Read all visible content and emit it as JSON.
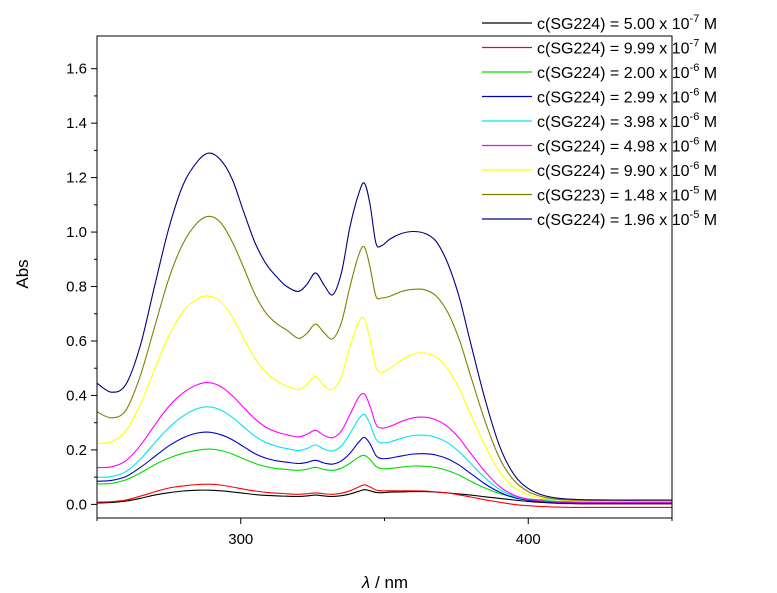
{
  "chart_data": {
    "type": "line",
    "xlabel_symbol": "λ",
    "xlabel_unit": " / nm",
    "ylabel": "Abs",
    "xlim": [
      250,
      450
    ],
    "ylim": [
      -0.05,
      1.72
    ],
    "x_ticks": [
      300,
      400
    ],
    "x_tick_labels": [
      "300",
      "400"
    ],
    "y_ticks": [
      0.0,
      0.2,
      0.4,
      0.6,
      0.8,
      1.0,
      1.2,
      1.4,
      1.6
    ],
    "y_tick_labels": [
      "0.0",
      "0.2",
      "0.4",
      "0.6",
      "0.8",
      "1.0",
      "1.2",
      "1.4",
      "1.6"
    ],
    "grid": false,
    "legend_position": "top-right",
    "x": [
      250,
      255,
      260,
      265,
      270,
      275,
      280,
      285,
      289,
      293,
      297,
      301,
      305,
      309,
      313,
      316,
      320,
      323,
      326,
      329,
      332,
      335,
      338,
      341,
      343,
      345,
      347,
      349,
      352,
      356,
      360,
      364,
      368,
      372,
      376,
      380,
      385,
      390,
      395,
      400,
      405,
      410,
      415,
      420,
      430,
      440,
      450
    ],
    "series": [
      {
        "name": "c(SG224) = 5.00 x 10",
        "exp": "-7",
        "unit": " M",
        "color": "#000000",
        "values": [
          0.005,
          0.007,
          0.012,
          0.022,
          0.034,
          0.043,
          0.049,
          0.052,
          0.052,
          0.05,
          0.046,
          0.041,
          0.036,
          0.033,
          0.031,
          0.03,
          0.029,
          0.031,
          0.034,
          0.031,
          0.029,
          0.032,
          0.038,
          0.048,
          0.054,
          0.05,
          0.044,
          0.043,
          0.045,
          0.046,
          0.047,
          0.047,
          0.045,
          0.042,
          0.038,
          0.034,
          0.028,
          0.022,
          0.016,
          0.011,
          0.007,
          0.004,
          0.003,
          0.002,
          0.002,
          0.002,
          0.002
        ]
      },
      {
        "name": "c(SG224) = 9.99 x 10",
        "exp": "-7",
        "unit": " M",
        "color": "#ff0000",
        "values": [
          0.008,
          0.01,
          0.016,
          0.03,
          0.046,
          0.06,
          0.068,
          0.073,
          0.074,
          0.071,
          0.064,
          0.056,
          0.049,
          0.044,
          0.041,
          0.039,
          0.037,
          0.039,
          0.042,
          0.039,
          0.037,
          0.041,
          0.05,
          0.064,
          0.072,
          0.064,
          0.053,
          0.05,
          0.05,
          0.05,
          0.05,
          0.049,
          0.046,
          0.042,
          0.035,
          0.027,
          0.017,
          0.008,
          0.0,
          -0.005,
          -0.008,
          -0.01,
          -0.011,
          -0.011,
          -0.011,
          -0.011,
          -0.011
        ]
      },
      {
        "name": "c(SG224) = 2.00 x 10",
        "exp": "-6",
        "unit": " M",
        "color": "#00dd00",
        "values": [
          0.075,
          0.077,
          0.09,
          0.115,
          0.145,
          0.17,
          0.188,
          0.199,
          0.203,
          0.198,
          0.185,
          0.167,
          0.15,
          0.138,
          0.131,
          0.128,
          0.125,
          0.129,
          0.136,
          0.128,
          0.125,
          0.133,
          0.151,
          0.173,
          0.18,
          0.165,
          0.14,
          0.131,
          0.132,
          0.137,
          0.141,
          0.14,
          0.135,
          0.124,
          0.107,
          0.085,
          0.06,
          0.04,
          0.027,
          0.02,
          0.017,
          0.016,
          0.015,
          0.015,
          0.015,
          0.015,
          0.015
        ]
      },
      {
        "name": "c(SG224) = 2.99 x 10",
        "exp": "-6",
        "unit": " M",
        "color": "#0000cc",
        "values": [
          0.085,
          0.088,
          0.102,
          0.135,
          0.175,
          0.215,
          0.245,
          0.262,
          0.265,
          0.256,
          0.238,
          0.212,
          0.186,
          0.169,
          0.159,
          0.155,
          0.15,
          0.154,
          0.162,
          0.152,
          0.148,
          0.16,
          0.188,
          0.228,
          0.246,
          0.222,
          0.18,
          0.168,
          0.17,
          0.178,
          0.185,
          0.186,
          0.181,
          0.167,
          0.144,
          0.113,
          0.075,
          0.045,
          0.025,
          0.015,
          0.01,
          0.007,
          0.006,
          0.005,
          0.005,
          0.005,
          0.005
        ]
      },
      {
        "name": "c(SG224) = 3.98 x 10",
        "exp": "-6",
        "unit": " M",
        "color": "#00e5ee",
        "values": [
          0.1,
          0.102,
          0.12,
          0.165,
          0.225,
          0.282,
          0.325,
          0.352,
          0.358,
          0.347,
          0.32,
          0.285,
          0.25,
          0.226,
          0.212,
          0.205,
          0.198,
          0.205,
          0.218,
          0.203,
          0.196,
          0.215,
          0.26,
          0.313,
          0.33,
          0.295,
          0.24,
          0.226,
          0.23,
          0.243,
          0.253,
          0.254,
          0.246,
          0.226,
          0.193,
          0.15,
          0.097,
          0.055,
          0.03,
          0.018,
          0.013,
          0.011,
          0.01,
          0.01,
          0.01,
          0.01,
          0.01
        ]
      },
      {
        "name": "c(SG224) = 4.98 x 10",
        "exp": "-6",
        "unit": " M",
        "color": "#ff00ff",
        "values": [
          0.135,
          0.138,
          0.16,
          0.215,
          0.29,
          0.36,
          0.41,
          0.44,
          0.447,
          0.433,
          0.4,
          0.356,
          0.313,
          0.282,
          0.264,
          0.256,
          0.248,
          0.257,
          0.272,
          0.253,
          0.245,
          0.27,
          0.33,
          0.393,
          0.405,
          0.36,
          0.295,
          0.28,
          0.287,
          0.305,
          0.318,
          0.32,
          0.31,
          0.285,
          0.243,
          0.187,
          0.12,
          0.066,
          0.034,
          0.019,
          0.012,
          0.009,
          0.008,
          0.007,
          0.007,
          0.007,
          0.007
        ]
      },
      {
        "name": "c(SG224) = 9.90 x 10",
        "exp": "-6",
        "unit": " M",
        "color": "#ffff00",
        "values": [
          0.225,
          0.229,
          0.27,
          0.365,
          0.495,
          0.62,
          0.71,
          0.755,
          0.765,
          0.745,
          0.69,
          0.61,
          0.535,
          0.482,
          0.45,
          0.435,
          0.422,
          0.44,
          0.47,
          0.435,
          0.423,
          0.47,
          0.58,
          0.67,
          0.68,
          0.605,
          0.505,
          0.485,
          0.5,
          0.53,
          0.552,
          0.556,
          0.54,
          0.497,
          0.425,
          0.33,
          0.215,
          0.12,
          0.063,
          0.035,
          0.022,
          0.016,
          0.014,
          0.013,
          0.012,
          0.012,
          0.012
        ]
      },
      {
        "name": "c(SG223) = 1.48 x 10",
        "exp": "-5",
        "unit": " M",
        "color": "#808000",
        "values": [
          0.34,
          0.318,
          0.345,
          0.47,
          0.65,
          0.83,
          0.96,
          1.035,
          1.058,
          1.035,
          0.965,
          0.87,
          0.77,
          0.7,
          0.66,
          0.64,
          0.61,
          0.628,
          0.662,
          0.63,
          0.608,
          0.668,
          0.8,
          0.915,
          0.945,
          0.87,
          0.765,
          0.758,
          0.765,
          0.782,
          0.79,
          0.788,
          0.765,
          0.705,
          0.605,
          0.47,
          0.305,
          0.17,
          0.088,
          0.047,
          0.028,
          0.019,
          0.016,
          0.015,
          0.014,
          0.014,
          0.014
        ]
      },
      {
        "name": "c(SG224) = 1.96 x 10",
        "exp": "-5",
        "unit": " M",
        "color": "#000080",
        "values": [
          0.445,
          0.412,
          0.44,
          0.58,
          0.8,
          1.015,
          1.175,
          1.26,
          1.29,
          1.265,
          1.195,
          1.075,
          0.96,
          0.88,
          0.83,
          0.8,
          0.782,
          0.808,
          0.85,
          0.805,
          0.77,
          0.85,
          1.02,
          1.14,
          1.18,
          1.1,
          0.96,
          0.95,
          0.975,
          0.995,
          1.002,
          0.995,
          0.965,
          0.885,
          0.76,
          0.59,
          0.385,
          0.215,
          0.11,
          0.058,
          0.034,
          0.023,
          0.019,
          0.017,
          0.016,
          0.016,
          0.016
        ]
      }
    ]
  }
}
